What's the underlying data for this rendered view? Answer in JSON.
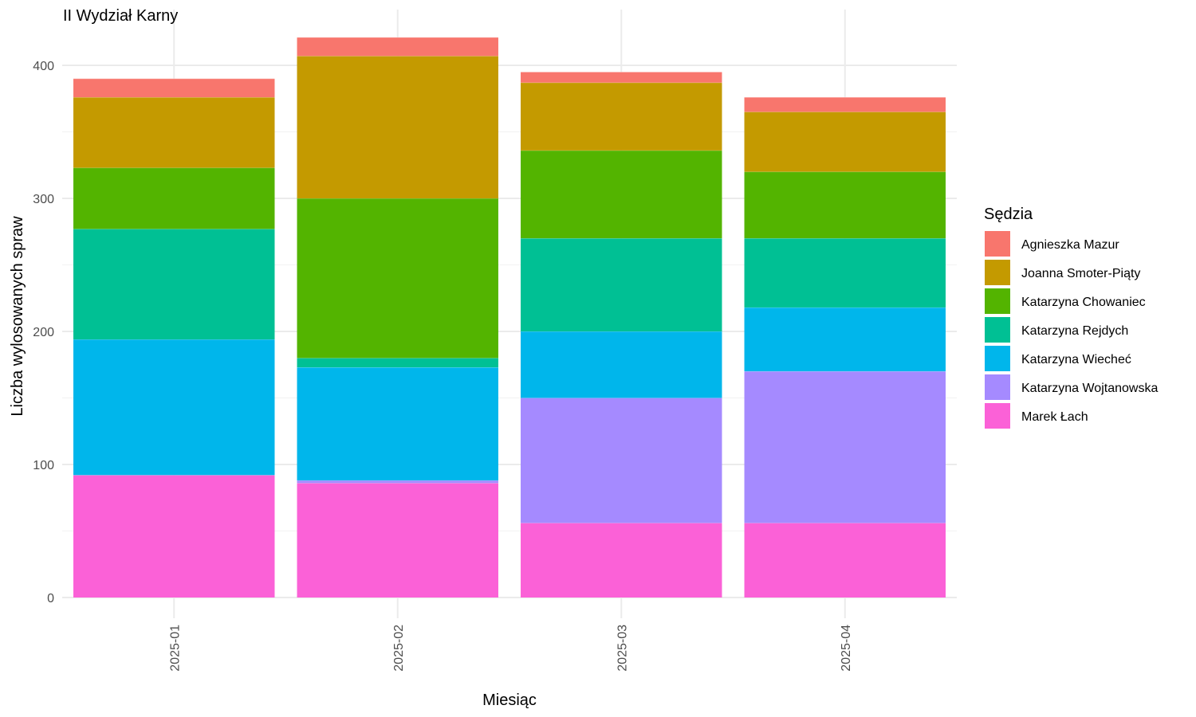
{
  "chart_data": {
    "type": "bar",
    "stacked": true,
    "title": "II Wydział Karny",
    "xlabel": "Miesiąc",
    "ylabel": "Liczba wylosowanych spraw",
    "ylim": [
      0,
      430
    ],
    "yticks": [
      0,
      100,
      200,
      300,
      400
    ],
    "grid": true,
    "legend_title": "Sędzia",
    "legend_position": "right",
    "categories": [
      "2025-01",
      "2025-02",
      "2025-03",
      "2025-04"
    ],
    "series": [
      {
        "name": "Marek Łach",
        "color": "#FB61D7",
        "values": [
          92,
          86,
          56,
          56
        ]
      },
      {
        "name": "Katarzyna Wojtanowska",
        "color": "#A58AFF",
        "values": [
          0,
          2,
          94,
          114
        ]
      },
      {
        "name": "Katarzyna Wiecheć",
        "color": "#00B6EB",
        "values": [
          102,
          85,
          50,
          48
        ]
      },
      {
        "name": "Katarzyna Rejdych",
        "color": "#00C094",
        "values": [
          83,
          7,
          70,
          52
        ]
      },
      {
        "name": "Katarzyna Chowaniec",
        "color": "#53B400",
        "values": [
          46,
          120,
          66,
          50
        ]
      },
      {
        "name": "Joanna Smoter-Piąty",
        "color": "#C49A00",
        "values": [
          53,
          107,
          51,
          45
        ]
      },
      {
        "name": "Agnieszka Mazur",
        "color": "#F8766D",
        "values": [
          14,
          14,
          8,
          11
        ]
      }
    ]
  }
}
